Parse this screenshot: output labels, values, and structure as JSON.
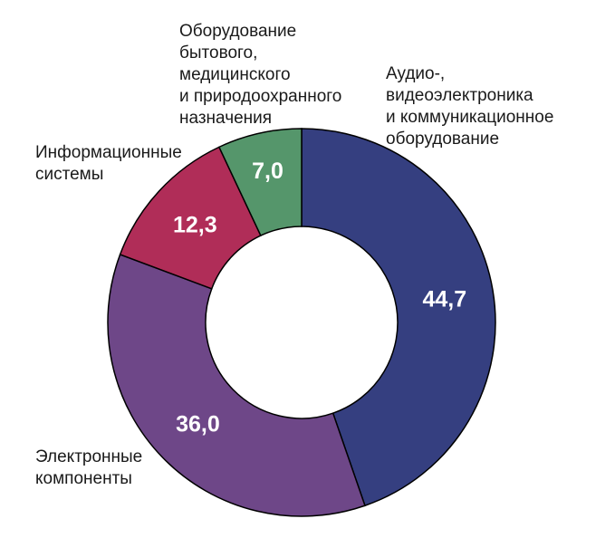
{
  "chart_data": {
    "type": "pie",
    "variant": "donut",
    "slices": [
      {
        "label_lines": [
          "Аудио-,",
          "видеоэлектроника",
          "и коммуникационное",
          "оборудование"
        ],
        "value": 44.7,
        "value_label": "44,7",
        "color": "#353f80"
      },
      {
        "label_lines": [
          "Электронные",
          "компоненты"
        ],
        "value": 36.0,
        "value_label": "36,0",
        "color": "#6e4788"
      },
      {
        "label_lines": [
          "Информационные",
          "системы"
        ],
        "value": 12.3,
        "value_label": "12,3",
        "color": "#b02d58"
      },
      {
        "label_lines": [
          "Оборудование",
          "бытового,",
          "медицинского",
          "и природоохранного",
          "назначения"
        ],
        "value": 7.0,
        "value_label": "7,0",
        "color": "#55966b"
      }
    ],
    "start_angle": "12 o'clock",
    "direction": "clockwise",
    "border_color": "#000000"
  }
}
